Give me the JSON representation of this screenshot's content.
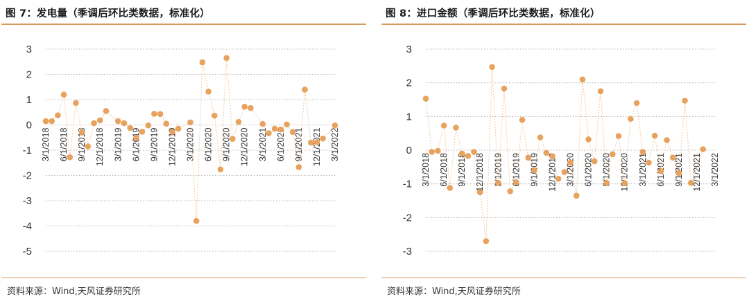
{
  "source_text": "资料来源：Wind,天风证券研究所",
  "colors": {
    "series": "#e8a25e",
    "line": "#f0c9a0",
    "rule": "#d99a5e",
    "grid": "#9a9a9a"
  },
  "chart_data": [
    {
      "type": "line",
      "title": "图 7：发电量（季调后环比类数据，标准化）",
      "xlabel": "",
      "ylabel": "",
      "ylim": [
        -5,
        3
      ],
      "yticks": [
        "3",
        "2",
        "1",
        "0",
        "-1",
        "-2",
        "-3",
        "-4",
        "-5"
      ],
      "xticks": [
        "3/1/2018",
        "6/1/2018",
        "9/1/2018",
        "12/1/2018",
        "3/1/2019",
        "6/1/2019",
        "9/1/2019",
        "12/1/2019",
        "3/1/2020",
        "6/1/2020",
        "9/1/2020",
        "12/1/2020",
        "3/1/2021",
        "6/1/2021",
        "9/1/2021",
        "12/1/2021",
        "3/1/2022"
      ],
      "grid": "horizontal dotted",
      "marker": "circle",
      "x": [
        "2018-03",
        "2018-04",
        "2018-05",
        "2018-06",
        "2018-07",
        "2018-08",
        "2018-09",
        "2018-10",
        "2018-11",
        "2018-12",
        "2019-01",
        "2019-02",
        "2019-03",
        "2019-04",
        "2019-05",
        "2019-06",
        "2019-07",
        "2019-08",
        "2019-09",
        "2019-10",
        "2019-11",
        "2019-12",
        "2020-01",
        "2020-02",
        "2020-03",
        "2020-04",
        "2020-05",
        "2020-06",
        "2020-07",
        "2020-08",
        "2020-09",
        "2020-10",
        "2020-11",
        "2020-12",
        "2021-01",
        "2021-02",
        "2021-03",
        "2021-04",
        "2021-05",
        "2021-06",
        "2021-07",
        "2021-08",
        "2021-09",
        "2021-10",
        "2021-11",
        "2021-12",
        "2022-01",
        "2022-02",
        "2022-03"
      ],
      "values": [
        0.15,
        0.15,
        0.38,
        1.2,
        -1.28,
        0.87,
        -0.3,
        -0.85,
        0.07,
        0.18,
        0.55,
        null,
        0.15,
        0.07,
        -0.12,
        -0.52,
        -0.27,
        -0.02,
        0.44,
        0.43,
        0.05,
        -0.28,
        -0.15,
        null,
        0.1,
        -3.8,
        2.48,
        1.32,
        0.37,
        -1.76,
        2.65,
        -0.55,
        0.12,
        0.72,
        0.67,
        null,
        0.04,
        -0.33,
        -0.15,
        -0.18,
        0.02,
        -0.28,
        -1.67,
        1.4,
        -0.7,
        -0.68,
        -0.54,
        null,
        -0.02
      ]
    },
    {
      "type": "line",
      "title": "图 8：进口金额（季调后环比类数据，标准化）",
      "xlabel": "",
      "ylabel": "",
      "ylim": [
        -3,
        3
      ],
      "yticks": [
        "3",
        "2",
        "1",
        "0",
        "-1",
        "-2",
        "-3"
      ],
      "xticks": [
        "3/1/2018",
        "6/1/2018",
        "9/1/2018",
        "12/1/2018",
        "3/1/2019",
        "6/1/2019",
        "9/1/2019",
        "12/1/2019",
        "3/1/2020",
        "6/1/2020",
        "9/1/2020",
        "12/1/2020",
        "3/1/2021",
        "6/1/2021",
        "9/1/2021",
        "12/1/2021",
        "3/1/2022"
      ],
      "grid": "horizontal dotted",
      "marker": "circle",
      "x": [
        "2018-03",
        "2018-04",
        "2018-05",
        "2018-06",
        "2018-07",
        "2018-08",
        "2018-09",
        "2018-10",
        "2018-11",
        "2018-12",
        "2019-01",
        "2019-02",
        "2019-03",
        "2019-04",
        "2019-05",
        "2019-06",
        "2019-07",
        "2019-08",
        "2019-09",
        "2019-10",
        "2019-11",
        "2019-12",
        "2020-01",
        "2020-02",
        "2020-03",
        "2020-04",
        "2020-05",
        "2020-06",
        "2020-07",
        "2020-08",
        "2020-09",
        "2020-10",
        "2020-11",
        "2020-12",
        "2021-01",
        "2021-02",
        "2021-03",
        "2021-04",
        "2021-05",
        "2021-06",
        "2021-07",
        "2021-08",
        "2021-09",
        "2021-10",
        "2021-11",
        "2021-12",
        "2022-01",
        "2022-02",
        "2022-03"
      ],
      "values": [
        1.53,
        -0.05,
        -0.02,
        0.73,
        -1.12,
        0.67,
        -0.1,
        -0.17,
        -0.05,
        -1.25,
        -2.7,
        2.47,
        -0.97,
        1.83,
        -1.22,
        -0.95,
        0.9,
        -0.22,
        -0.6,
        0.38,
        -0.08,
        -0.18,
        -0.85,
        -0.65,
        -0.37,
        -1.35,
        2.1,
        0.32,
        -0.33,
        1.75,
        -0.97,
        -0.12,
        0.42,
        -0.98,
        0.93,
        1.4,
        -0.05,
        -0.37,
        0.43,
        -0.62,
        0.3,
        -0.22,
        -0.68,
        1.47,
        -0.97,
        null,
        0.03,
        null,
        null
      ]
    }
  ]
}
